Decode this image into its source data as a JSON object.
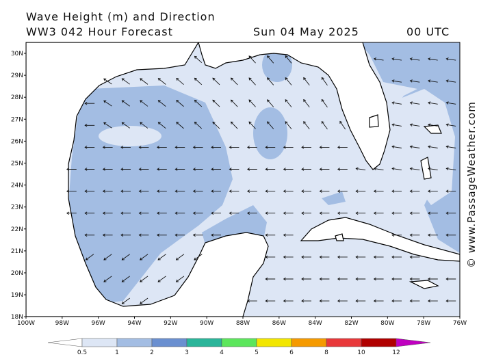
{
  "header": {
    "title": "Wave Height (m) and Direction",
    "forecast": "WW3 042 Hour Forecast",
    "date": "Sun 04 May 2025",
    "time": "00 UTC"
  },
  "map": {
    "lon_labels": [
      "100W",
      "98W",
      "96W",
      "94W",
      "92W",
      "90W",
      "88W",
      "86W",
      "84W",
      "82W",
      "80W",
      "78W",
      "76W"
    ],
    "lat_labels": [
      "30N",
      "29N",
      "28N",
      "27N",
      "26N",
      "25N",
      "24N",
      "23N",
      "22N",
      "21N",
      "20N",
      "19N",
      "18N"
    ]
  },
  "legend": {
    "labels": [
      "0.5",
      "1",
      "2",
      "3",
      "4",
      "5",
      "6",
      "8",
      "10",
      "12"
    ],
    "colors": [
      "#ffffff",
      "#dde6f5",
      "#a3bde3",
      "#6a8fd0",
      "#2bb59a",
      "#5ce65c",
      "#f2e600",
      "#f59a00",
      "#e8383a",
      "#b00000",
      "#c000c0"
    ]
  },
  "watermark": "© www.PassageWeather.com"
}
